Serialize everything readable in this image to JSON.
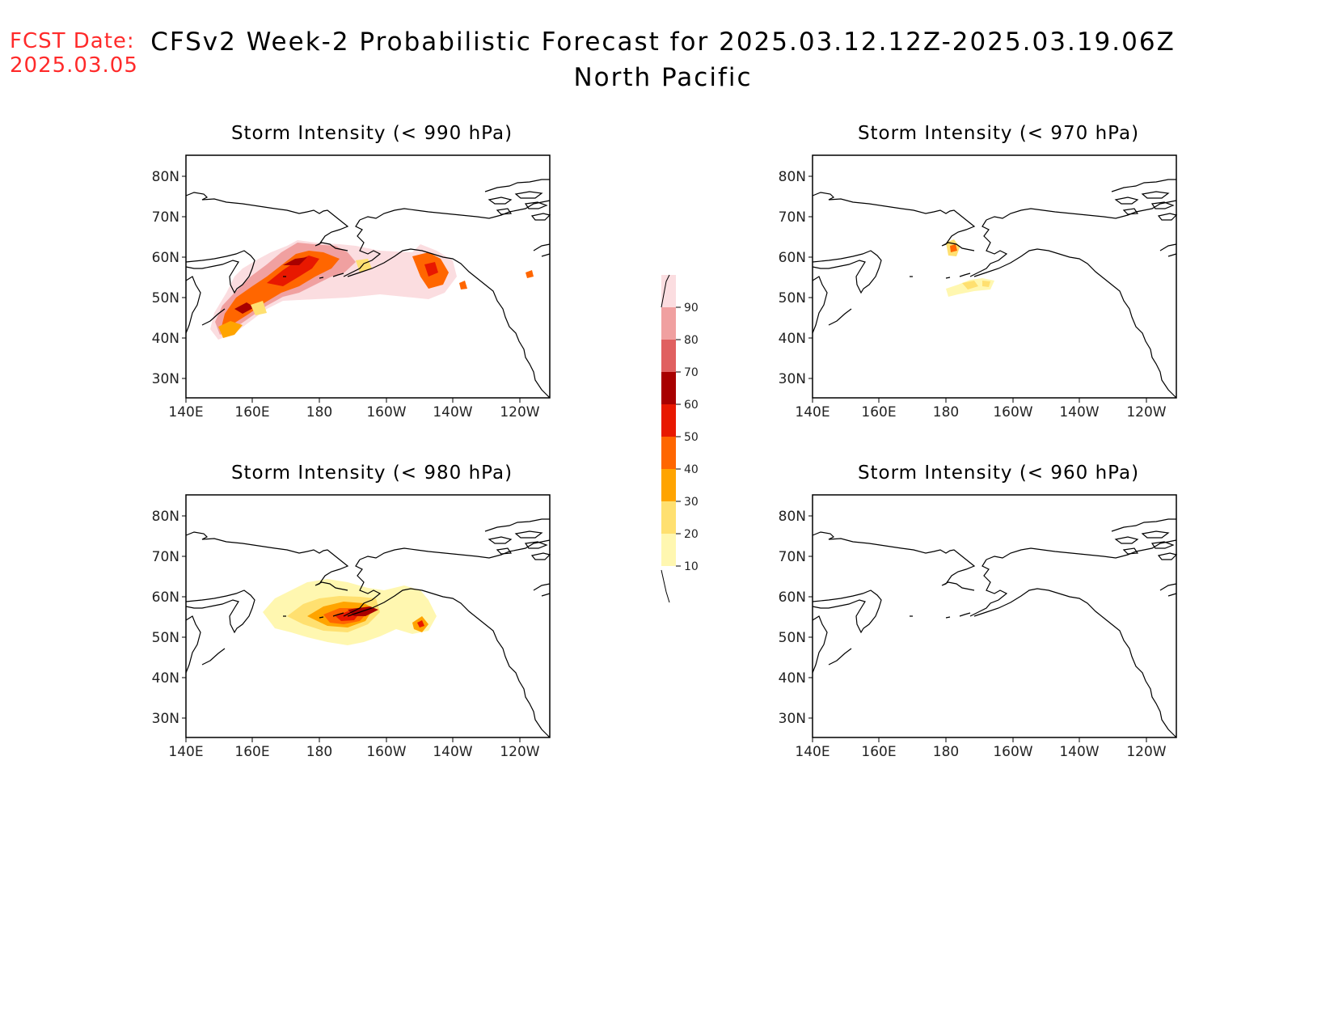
{
  "header": {
    "fcst_label": "FCST Date:",
    "fcst_date": "2025.03.05",
    "title_line1": "CFSv2 Week-2 Probabilistic Forecast for 2025.03.12.12Z-2025.03.19.06Z",
    "title_line2": "North Pacific"
  },
  "colors": {
    "accent_red": "#ff2a2a",
    "scale": [
      "#fff7b0",
      "#ffe070",
      "#ffa400",
      "#ff6600",
      "#e81800",
      "#a80000",
      "#e06060",
      "#f0a0a0",
      "#fbdde0"
    ]
  },
  "panels": [
    {
      "title": "Storm Intensity (< 990 hPa)",
      "threshold": "990"
    },
    {
      "title": "Storm Intensity (< 970 hPa)",
      "threshold": "970"
    },
    {
      "title": "Storm Intensity (< 980 hPa)",
      "threshold": "980"
    },
    {
      "title": "Storm Intensity (< 960 hPa)",
      "threshold": "960"
    }
  ],
  "axes": {
    "lon_labels": [
      "140E",
      "160E",
      "180",
      "160W",
      "140W",
      "120W"
    ],
    "lat_labels": [
      "80N",
      "70N",
      "60N",
      "50N",
      "40N",
      "30N"
    ]
  },
  "colorbar": {
    "levels": [
      "90",
      "80",
      "70",
      "60",
      "50",
      "40",
      "30",
      "20",
      "10"
    ]
  }
}
